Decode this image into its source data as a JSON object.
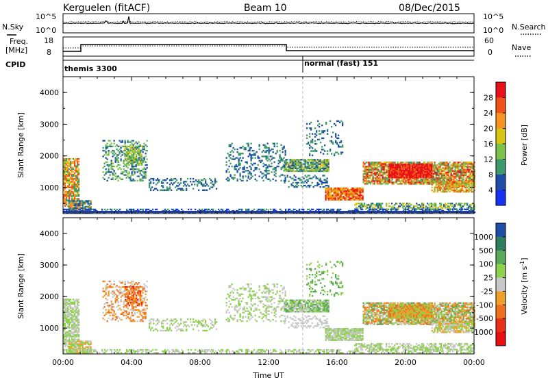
{
  "header": {
    "station": "Kerguelen (fitACF)",
    "beam": "Beam 10",
    "date": "08/Dec/2015"
  },
  "noise_panel": {
    "left_label": "N.Sky",
    "right_label": "N.Search",
    "left_ticks": [
      "10^5",
      "10^0"
    ],
    "right_ticks": [
      "10^5",
      "10^0"
    ]
  },
  "freq_panel": {
    "left_label_1": "Freq.",
    "left_label_2": "[MHz]",
    "right_label": "Nave",
    "left_ticks": [
      "18",
      "8"
    ],
    "right_ticks": [
      "60",
      "0"
    ]
  },
  "cpid_panel": {
    "label": "CPID",
    "modes": [
      {
        "name": "themis 3300",
        "start_hour": 0
      },
      {
        "name": "normal (fast) 151",
        "start_hour": 14
      }
    ]
  },
  "chart_data": [
    {
      "type": "heatmap",
      "name": "power",
      "xlabel": "",
      "ylabel": "Slant Range [km]",
      "colorbar_label": "Power [dB]",
      "colorbar_ticks": [
        "28",
        "24",
        "20",
        "16",
        "12",
        "8",
        "4"
      ],
      "colorbar_colors": [
        "#e8121a",
        "#f25218",
        "#f89220",
        "#d8c414",
        "#7cc14a",
        "#3f9a6a",
        "#1e4fa8",
        "#1432f0"
      ],
      "yticks": [
        "1000",
        "2000",
        "3000",
        "4000"
      ],
      "ylim": [
        180,
        4500
      ],
      "xlim": [
        "00:00",
        "24:00"
      ]
    },
    {
      "type": "heatmap",
      "name": "velocity",
      "xlabel": "Time UT",
      "ylabel": "Slant Range [km]",
      "colorbar_label": "Velocity [m s",
      "colorbar_superscript": "-1",
      "colorbar_label_close": "]",
      "colorbar_ticks": [
        "1000",
        "500",
        "100",
        "25",
        "-25",
        "-100",
        "-500",
        "-1000"
      ],
      "colorbar_colors": [
        "#1e4fa8",
        "#2f7e5e",
        "#5aa85a",
        "#8cd24a",
        "#c8c8c8",
        "#f0a028",
        "#f07020",
        "#e83018",
        "#e81010"
      ],
      "yticks": [
        "1000",
        "2000",
        "3000",
        "4000"
      ],
      "xticks": [
        "00:00",
        "04:00",
        "08:00",
        "12:00",
        "16:00",
        "20:00",
        "00:00"
      ],
      "ylim": [
        180,
        4500
      ],
      "xlim": [
        "00:00",
        "24:00"
      ]
    }
  ]
}
